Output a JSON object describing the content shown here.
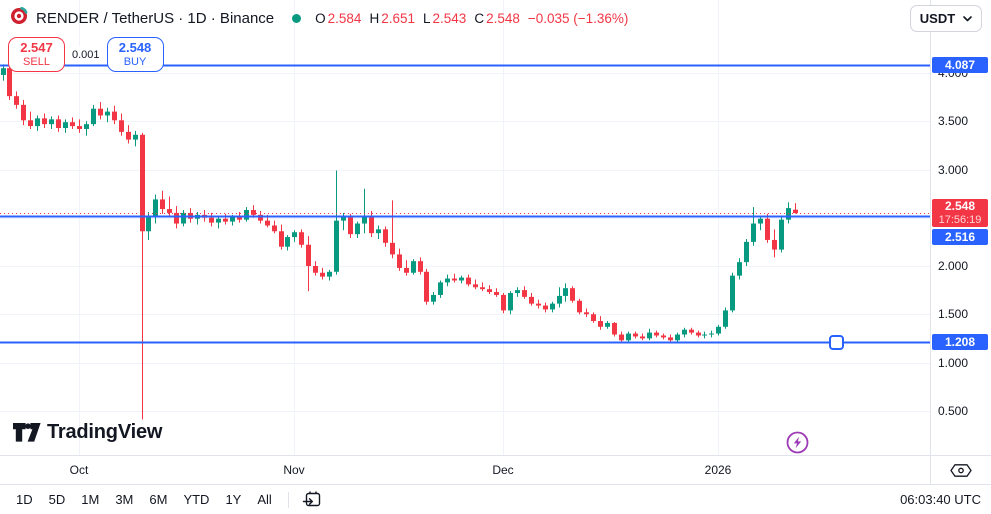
{
  "header": {
    "title": "RENDER / TetherUS · 1D · Binance",
    "ohlc": [
      {
        "label": "O",
        "value": "2.584"
      },
      {
        "label": "H",
        "value": "2.651"
      },
      {
        "label": "L",
        "value": "2.543"
      },
      {
        "label": "C",
        "value": "2.548"
      }
    ],
    "change": "−0.035 (−1.36%)",
    "currency": "USDT"
  },
  "trade": {
    "sell_price": "2.547",
    "sell_label": "SELL",
    "spread": "0.001",
    "buy_price": "2.548",
    "buy_label": "BUY"
  },
  "watermark": {
    "text": "TradingView"
  },
  "toolbar": {
    "ranges": [
      "1D",
      "5D",
      "1M",
      "3M",
      "6M",
      "YTD",
      "1Y",
      "All"
    ],
    "clock": "06:03:40 UTC"
  },
  "time_axis": {
    "labels": [
      {
        "label": "Oct",
        "candle_index": 11
      },
      {
        "label": "Nov",
        "candle_index": 42
      },
      {
        "label": "Dec",
        "candle_index": 72
      },
      {
        "label": "2026",
        "candle_index": 103
      }
    ]
  },
  "price_axis": {
    "ticks": [
      {
        "label": "4.000",
        "price": 4.0
      },
      {
        "label": "3.500",
        "price": 3.5
      },
      {
        "label": "3.000",
        "price": 3.0
      },
      {
        "label": "2.000",
        "price": 2.0
      },
      {
        "label": "1.500",
        "price": 1.5
      },
      {
        "label": "1.000",
        "price": 1.0
      },
      {
        "label": "0.500",
        "price": 0.5
      }
    ]
  },
  "colors": {
    "up": "#089981",
    "down": "#f23645",
    "line_blue": "#2962ff",
    "badge_red": "#f23645",
    "grid": "#f0f3fa",
    "axis_border": "#e0e3eb",
    "text": "#131722",
    "accent_purple": "#9c3bb5"
  },
  "chart_data": {
    "type": "candlestick",
    "symbol": "RENDER/USDT",
    "timeframe": "1D",
    "exchange": "Binance",
    "grid_prices": [
      4.0,
      3.5,
      3.0,
      2.5,
      2.0,
      1.5,
      1.0,
      0.5
    ],
    "price_lines": [
      {
        "price": 4.087,
        "label": "4.087",
        "color": "#2962ff",
        "style": "solid"
      },
      {
        "price": 2.548,
        "label": "2.548",
        "color": "#f23645",
        "style": "dotted",
        "countdown": "17:56:19"
      },
      {
        "price": 2.516,
        "label": "2.516",
        "color": "#2962ff",
        "style": "solid"
      },
      {
        "price": 1.208,
        "label": "1.208",
        "color": "#2962ff",
        "style": "solid",
        "handle": true
      }
    ],
    "last_candle": {
      "open": 2.584,
      "high": 2.651,
      "low": 2.543,
      "close": 2.548,
      "change": -0.035,
      "change_pct": -1.36
    },
    "candles": [
      [
        3.98,
        4.09,
        3.92,
        4.05
      ],
      [
        4.05,
        4.09,
        3.72,
        3.76
      ],
      [
        3.76,
        3.81,
        3.63,
        3.67
      ],
      [
        3.67,
        3.72,
        3.46,
        3.51
      ],
      [
        3.51,
        3.6,
        3.42,
        3.45
      ],
      [
        3.45,
        3.56,
        3.4,
        3.53
      ],
      [
        3.53,
        3.58,
        3.43,
        3.47
      ],
      [
        3.47,
        3.55,
        3.42,
        3.52
      ],
      [
        3.52,
        3.56,
        3.39,
        3.43
      ],
      [
        3.43,
        3.52,
        3.38,
        3.49
      ],
      [
        3.49,
        3.54,
        3.42,
        3.45
      ],
      [
        3.45,
        3.52,
        3.38,
        3.42
      ],
      [
        3.42,
        3.5,
        3.35,
        3.47
      ],
      [
        3.47,
        3.67,
        3.45,
        3.63
      ],
      [
        3.63,
        3.7,
        3.52,
        3.56
      ],
      [
        3.56,
        3.64,
        3.49,
        3.6
      ],
      [
        3.6,
        3.66,
        3.47,
        3.51
      ],
      [
        3.51,
        3.58,
        3.35,
        3.39
      ],
      [
        3.39,
        3.46,
        3.27,
        3.31
      ],
      [
        3.31,
        3.4,
        3.24,
        3.36
      ],
      [
        3.36,
        3.38,
        0.41,
        2.36
      ],
      [
        2.36,
        2.56,
        2.27,
        2.52
      ],
      [
        2.52,
        2.74,
        2.44,
        2.69
      ],
      [
        2.69,
        2.78,
        2.54,
        2.59
      ],
      [
        2.59,
        2.72,
        2.51,
        2.55
      ],
      [
        2.55,
        2.62,
        2.39,
        2.44
      ],
      [
        2.44,
        2.58,
        2.41,
        2.55
      ],
      [
        2.55,
        2.6,
        2.45,
        2.49
      ],
      [
        2.49,
        2.56,
        2.43,
        2.53
      ],
      [
        2.53,
        2.58,
        2.46,
        2.5
      ],
      [
        2.5,
        2.55,
        2.41,
        2.45
      ],
      [
        2.45,
        2.52,
        2.39,
        2.49
      ],
      [
        2.49,
        2.54,
        2.43,
        2.46
      ],
      [
        2.46,
        2.53,
        2.42,
        2.51
      ],
      [
        2.51,
        2.56,
        2.45,
        2.48
      ],
      [
        2.48,
        2.61,
        2.46,
        2.58
      ],
      [
        2.58,
        2.63,
        2.5,
        2.53
      ],
      [
        2.53,
        2.57,
        2.44,
        2.47
      ],
      [
        2.47,
        2.53,
        2.4,
        2.42
      ],
      [
        2.42,
        2.47,
        2.34,
        2.36
      ],
      [
        2.36,
        2.43,
        2.17,
        2.2
      ],
      [
        2.2,
        2.32,
        2.16,
        2.3
      ],
      [
        2.3,
        2.37,
        2.25,
        2.35
      ],
      [
        2.35,
        2.38,
        2.19,
        2.22
      ],
      [
        2.22,
        2.31,
        1.74,
        2.0
      ],
      [
        2.0,
        2.05,
        1.9,
        1.93
      ],
      [
        1.93,
        1.98,
        1.86,
        1.89
      ],
      [
        1.89,
        1.96,
        1.85,
        1.94
      ],
      [
        1.94,
        2.99,
        1.91,
        2.47
      ],
      [
        2.47,
        2.55,
        2.37,
        2.51
      ],
      [
        2.51,
        2.54,
        2.29,
        2.33
      ],
      [
        2.33,
        2.46,
        2.29,
        2.44
      ],
      [
        2.44,
        2.8,
        2.34,
        2.52
      ],
      [
        2.52,
        2.57,
        2.3,
        2.34
      ],
      [
        2.34,
        2.42,
        2.28,
        2.38
      ],
      [
        2.38,
        2.41,
        2.2,
        2.24
      ],
      [
        2.24,
        2.68,
        2.08,
        2.12
      ],
      [
        2.12,
        2.18,
        1.95,
        1.98
      ],
      [
        1.98,
        2.06,
        1.9,
        1.93
      ],
      [
        1.93,
        2.07,
        1.91,
        2.05
      ],
      [
        2.05,
        2.09,
        1.91,
        1.94
      ],
      [
        1.94,
        1.97,
        1.6,
        1.63
      ],
      [
        1.63,
        1.73,
        1.6,
        1.7
      ],
      [
        1.7,
        1.85,
        1.67,
        1.83
      ],
      [
        1.83,
        1.91,
        1.79,
        1.87
      ],
      [
        1.87,
        1.92,
        1.83,
        1.85
      ],
      [
        1.85,
        1.9,
        1.82,
        1.88
      ],
      [
        1.88,
        1.91,
        1.79,
        1.81
      ],
      [
        1.81,
        1.86,
        1.76,
        1.78
      ],
      [
        1.78,
        1.83,
        1.74,
        1.76
      ],
      [
        1.76,
        1.8,
        1.71,
        1.73
      ],
      [
        1.73,
        1.77,
        1.68,
        1.7
      ],
      [
        1.7,
        1.72,
        1.51,
        1.54
      ],
      [
        1.54,
        1.74,
        1.5,
        1.72
      ],
      [
        1.72,
        1.78,
        1.68,
        1.75
      ],
      [
        1.75,
        1.79,
        1.66,
        1.68
      ],
      [
        1.68,
        1.72,
        1.59,
        1.61
      ],
      [
        1.61,
        1.65,
        1.56,
        1.59
      ],
      [
        1.59,
        1.62,
        1.52,
        1.55
      ],
      [
        1.55,
        1.63,
        1.52,
        1.61
      ],
      [
        1.61,
        1.78,
        1.57,
        1.69
      ],
      [
        1.69,
        1.82,
        1.63,
        1.77
      ],
      [
        1.77,
        1.79,
        1.62,
        1.64
      ],
      [
        1.64,
        1.66,
        1.5,
        1.52
      ],
      [
        1.52,
        1.56,
        1.47,
        1.5
      ],
      [
        1.5,
        1.52,
        1.41,
        1.43
      ],
      [
        1.43,
        1.48,
        1.34,
        1.37
      ],
      [
        1.37,
        1.43,
        1.35,
        1.41
      ],
      [
        1.41,
        1.42,
        1.27,
        1.29
      ],
      [
        1.29,
        1.32,
        1.2,
        1.23
      ],
      [
        1.23,
        1.32,
        1.21,
        1.3
      ],
      [
        1.3,
        1.32,
        1.25,
        1.27
      ],
      [
        1.27,
        1.3,
        1.23,
        1.25
      ],
      [
        1.25,
        1.35,
        1.23,
        1.31
      ],
      [
        1.31,
        1.33,
        1.26,
        1.28
      ],
      [
        1.28,
        1.3,
        1.24,
        1.26
      ],
      [
        1.26,
        1.29,
        1.21,
        1.23
      ],
      [
        1.23,
        1.31,
        1.21,
        1.29
      ],
      [
        1.29,
        1.36,
        1.26,
        1.34
      ],
      [
        1.34,
        1.36,
        1.29,
        1.31
      ],
      [
        1.31,
        1.33,
        1.26,
        1.28
      ],
      [
        1.28,
        1.32,
        1.25,
        1.29
      ],
      [
        1.29,
        1.33,
        1.26,
        1.3
      ],
      [
        1.3,
        1.39,
        1.28,
        1.37
      ],
      [
        1.37,
        1.57,
        1.35,
        1.54
      ],
      [
        1.54,
        1.93,
        1.52,
        1.9
      ],
      [
        1.9,
        2.08,
        1.86,
        2.04
      ],
      [
        2.04,
        2.28,
        2.0,
        2.25
      ],
      [
        2.25,
        2.61,
        2.21,
        2.44
      ],
      [
        2.44,
        2.52,
        2.37,
        2.49
      ],
      [
        2.49,
        2.54,
        2.24,
        2.27
      ],
      [
        2.27,
        2.38,
        2.09,
        2.17
      ],
      [
        2.17,
        2.51,
        2.14,
        2.48
      ],
      [
        2.48,
        2.66,
        2.44,
        2.6
      ],
      [
        2.584,
        2.651,
        2.543,
        2.548
      ]
    ]
  }
}
